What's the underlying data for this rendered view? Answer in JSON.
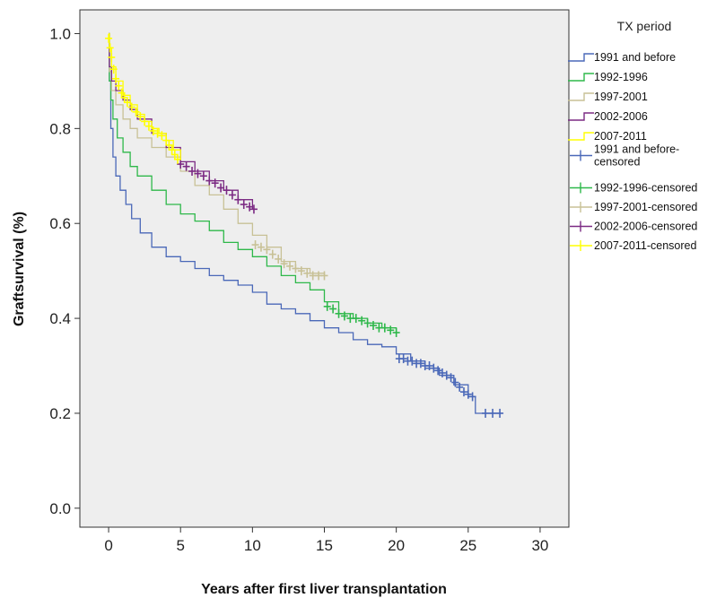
{
  "chart_data": {
    "type": "line",
    "xlabel": "Years after first liver transplantation",
    "ylabel": "Graftsurvival (%)",
    "xlim": [
      -2,
      32
    ],
    "ylim": [
      -0.04,
      1.05
    ],
    "xticks": [
      0,
      5,
      10,
      15,
      20,
      25,
      30
    ],
    "yticks": [
      0.0,
      0.2,
      0.4,
      0.6,
      0.8,
      1.0
    ],
    "ytick_labels": [
      "0.0",
      "0.2",
      "0.4",
      "0.6",
      "0.8",
      "1.0"
    ],
    "grid": false,
    "plot_background": "#eeeeee",
    "legend": {
      "title": "TX period",
      "placement": "right",
      "entries": [
        {
          "label": "1991 and before",
          "color": "#4a68b8",
          "kind": "line"
        },
        {
          "label": "1992-1996",
          "color": "#2eb84a",
          "kind": "line"
        },
        {
          "label": "1997-2001",
          "color": "#c8c196",
          "kind": "line"
        },
        {
          "label": "2002-2006",
          "color": "#7b2a83",
          "kind": "line"
        },
        {
          "label": "2007-2011",
          "color": "#ffff00",
          "kind": "line"
        },
        {
          "label": "1991 and before-censored",
          "color": "#4a68b8",
          "kind": "censor"
        },
        {
          "label": "1992-1996-censored",
          "color": "#2eb84a",
          "kind": "censor"
        },
        {
          "label": "1997-2001-censored",
          "color": "#c8c196",
          "kind": "censor"
        },
        {
          "label": "2002-2006-censored",
          "color": "#7b2a83",
          "kind": "censor"
        },
        {
          "label": "2007-2011-censored",
          "color": "#ffff00",
          "kind": "censor"
        }
      ]
    },
    "series": [
      {
        "name": "1991 and before",
        "color": "#4a68b8",
        "x": [
          0,
          0.05,
          0.15,
          0.3,
          0.5,
          0.8,
          1.2,
          1.6,
          2.2,
          3,
          4,
          5,
          6,
          7,
          8,
          9,
          10,
          11,
          12,
          13,
          14,
          15,
          16,
          17,
          18,
          19,
          20,
          21,
          22,
          23,
          24,
          25,
          25.5,
          27.3
        ],
        "y": [
          1.0,
          0.9,
          0.8,
          0.74,
          0.7,
          0.67,
          0.64,
          0.61,
          0.58,
          0.55,
          0.53,
          0.52,
          0.505,
          0.49,
          0.48,
          0.47,
          0.455,
          0.43,
          0.42,
          0.41,
          0.395,
          0.38,
          0.37,
          0.355,
          0.345,
          0.34,
          0.325,
          0.31,
          0.295,
          0.28,
          0.26,
          0.235,
          0.2,
          0.2
        ],
        "censor_x": [
          20.2,
          20.5,
          20.8,
          21.1,
          21.4,
          21.7,
          22,
          22.3,
          22.6,
          22.9,
          23.2,
          23.5,
          23.8,
          24.1,
          24.4,
          24.7,
          25,
          25.3,
          26.2,
          26.7,
          27.2
        ],
        "censor_y": [
          0.315,
          0.315,
          0.31,
          0.31,
          0.305,
          0.305,
          0.3,
          0.3,
          0.295,
          0.29,
          0.285,
          0.28,
          0.275,
          0.265,
          0.255,
          0.245,
          0.24,
          0.235,
          0.2,
          0.2,
          0.2
        ]
      },
      {
        "name": "1992-1996",
        "color": "#2eb84a",
        "x": [
          0,
          0.05,
          0.15,
          0.3,
          0.6,
          1,
          1.5,
          2,
          3,
          4,
          5,
          6,
          7,
          8,
          9,
          10,
          11,
          12,
          13,
          14,
          15,
          16,
          17,
          18,
          19,
          20
        ],
        "y": [
          1.0,
          0.9,
          0.86,
          0.82,
          0.78,
          0.75,
          0.72,
          0.7,
          0.67,
          0.64,
          0.62,
          0.605,
          0.585,
          0.56,
          0.545,
          0.53,
          0.51,
          0.49,
          0.475,
          0.46,
          0.435,
          0.41,
          0.4,
          0.39,
          0.38,
          0.37
        ],
        "censor_x": [
          15.2,
          15.6,
          16,
          16.4,
          16.8,
          17.2,
          17.6,
          18,
          18.4,
          18.8,
          19.2,
          19.6,
          20
        ],
        "censor_y": [
          0.425,
          0.42,
          0.41,
          0.405,
          0.4,
          0.4,
          0.395,
          0.39,
          0.385,
          0.38,
          0.38,
          0.375,
          0.37
        ]
      },
      {
        "name": "1997-2001",
        "color": "#c8c196",
        "x": [
          0,
          0.05,
          0.2,
          0.5,
          1,
          1.5,
          2,
          3,
          4,
          5,
          6,
          7,
          8,
          9,
          10,
          11,
          12,
          13,
          14,
          15
        ],
        "y": [
          1.0,
          0.92,
          0.88,
          0.85,
          0.82,
          0.8,
          0.78,
          0.76,
          0.74,
          0.71,
          0.68,
          0.66,
          0.63,
          0.6,
          0.575,
          0.55,
          0.52,
          0.505,
          0.495,
          0.49
        ],
        "censor_x": [
          10.2,
          10.6,
          11,
          11.4,
          11.8,
          12.2,
          12.6,
          13,
          13.4,
          13.8,
          14.2,
          14.6,
          15
        ],
        "censor_y": [
          0.555,
          0.55,
          0.545,
          0.535,
          0.525,
          0.515,
          0.51,
          0.505,
          0.5,
          0.495,
          0.49,
          0.49,
          0.49
        ]
      },
      {
        "name": "2002-2006",
        "color": "#7b2a83",
        "x": [
          0,
          0.05,
          0.2,
          0.5,
          1,
          1.5,
          2,
          3,
          4,
          5,
          6,
          7,
          8,
          9,
          10
        ],
        "y": [
          1.0,
          0.93,
          0.9,
          0.88,
          0.86,
          0.84,
          0.82,
          0.79,
          0.76,
          0.73,
          0.71,
          0.69,
          0.67,
          0.65,
          0.63
        ],
        "censor_x": [
          5,
          5.4,
          5.8,
          6.2,
          6.6,
          7,
          7.4,
          7.8,
          8.2,
          8.6,
          9,
          9.4,
          9.8,
          10.1
        ],
        "censor_y": [
          0.725,
          0.72,
          0.71,
          0.705,
          0.7,
          0.69,
          0.685,
          0.675,
          0.67,
          0.66,
          0.65,
          0.64,
          0.635,
          0.63
        ]
      },
      {
        "name": "2007-2011",
        "color": "#ffff00",
        "x": [
          0,
          0.05,
          0.2,
          0.5,
          1,
          1.5,
          2,
          2.5,
          3,
          3.5,
          4,
          4.5,
          5
        ],
        "y": [
          1.0,
          0.97,
          0.93,
          0.9,
          0.87,
          0.85,
          0.83,
          0.815,
          0.8,
          0.79,
          0.775,
          0.755,
          0.73
        ],
        "censor_x": [
          0,
          0.1,
          0.2,
          0.35,
          0.5,
          0.7,
          0.9,
          1.1,
          1.3,
          1.6,
          1.9,
          2.2,
          2.5,
          2.8,
          3.1,
          3.4,
          3.7,
          4,
          4.2,
          4.4,
          4.6,
          4.8
        ],
        "censor_y": [
          0.99,
          0.97,
          0.95,
          0.925,
          0.905,
          0.89,
          0.875,
          0.865,
          0.855,
          0.845,
          0.835,
          0.825,
          0.815,
          0.805,
          0.795,
          0.79,
          0.785,
          0.775,
          0.765,
          0.755,
          0.745,
          0.735
        ]
      }
    ]
  }
}
